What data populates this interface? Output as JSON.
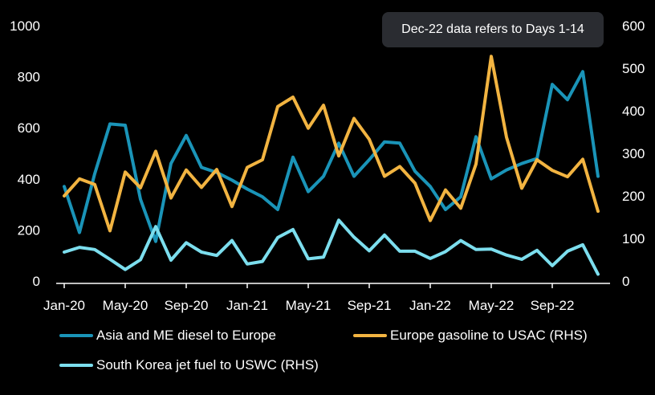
{
  "chart_data": {
    "type": "line",
    "title": "",
    "annotation": "Dec-22 data refers to Days 1-14",
    "x_labels": [
      "Jan-20",
      "May-20",
      "Sep-20",
      "Jan-21",
      "May-21",
      "Sep-21",
      "Jan-22",
      "May-22",
      "Sep-22"
    ],
    "x_months": [
      "Jan-20",
      "Feb-20",
      "Mar-20",
      "Apr-20",
      "May-20",
      "Jun-20",
      "Jul-20",
      "Aug-20",
      "Sep-20",
      "Oct-20",
      "Nov-20",
      "Dec-20",
      "Jan-21",
      "Feb-21",
      "Mar-21",
      "Apr-21",
      "May-21",
      "Jun-21",
      "Jul-21",
      "Aug-21",
      "Sep-21",
      "Oct-21",
      "Nov-21",
      "Dec-21",
      "Jan-22",
      "Feb-22",
      "Mar-22",
      "Apr-22",
      "May-22",
      "Jun-22",
      "Jul-22",
      "Aug-22",
      "Sep-22",
      "Oct-22",
      "Nov-22",
      "Dec-22"
    ],
    "y_left": {
      "min": 0,
      "max": 1000,
      "ticks": [
        0,
        200,
        400,
        600,
        800,
        1000
      ]
    },
    "y_right": {
      "min": 0,
      "max": 600,
      "ticks": [
        0,
        100,
        200,
        300,
        400,
        500,
        600
      ]
    },
    "grid": false,
    "legend_position": "bottom",
    "series": [
      {
        "name": "Asia and ME diesel to Europe",
        "axis": "left",
        "color": "#1a94b8",
        "values": [
          370,
          190,
          420,
          615,
          610,
          320,
          155,
          460,
          570,
          445,
          425,
          395,
          360,
          330,
          280,
          485,
          350,
          410,
          540,
          410,
          475,
          545,
          540,
          430,
          370,
          280,
          330,
          565,
          400,
          435,
          460,
          480,
          770,
          710,
          820,
          410
        ]
      },
      {
        "name": "Europe gasoline to USAC (RHS)",
        "axis": "right",
        "color": "#f2b441",
        "values": [
          200,
          240,
          227,
          118,
          256,
          219,
          305,
          195,
          261,
          220,
          262,
          175,
          267,
          285,
          410,
          432,
          359,
          413,
          294,
          382,
          333,
          246,
          269,
          230,
          142,
          214,
          171,
          275,
          528,
          338,
          218,
          285,
          260,
          245,
          286,
          164
        ]
      },
      {
        "name": "South Korea jet fuel to USWC (RHS)",
        "axis": "right",
        "color": "#7cdeee",
        "values": [
          68,
          79,
          74,
          51,
          27,
          50,
          128,
          49,
          90,
          68,
          60,
          95,
          40,
          46,
          102,
          121,
          52,
          56,
          143,
          103,
          71,
          108,
          70,
          70,
          53,
          69,
          95,
          74,
          75,
          61,
          51,
          72,
          36,
          70,
          85,
          16
        ]
      }
    ]
  }
}
